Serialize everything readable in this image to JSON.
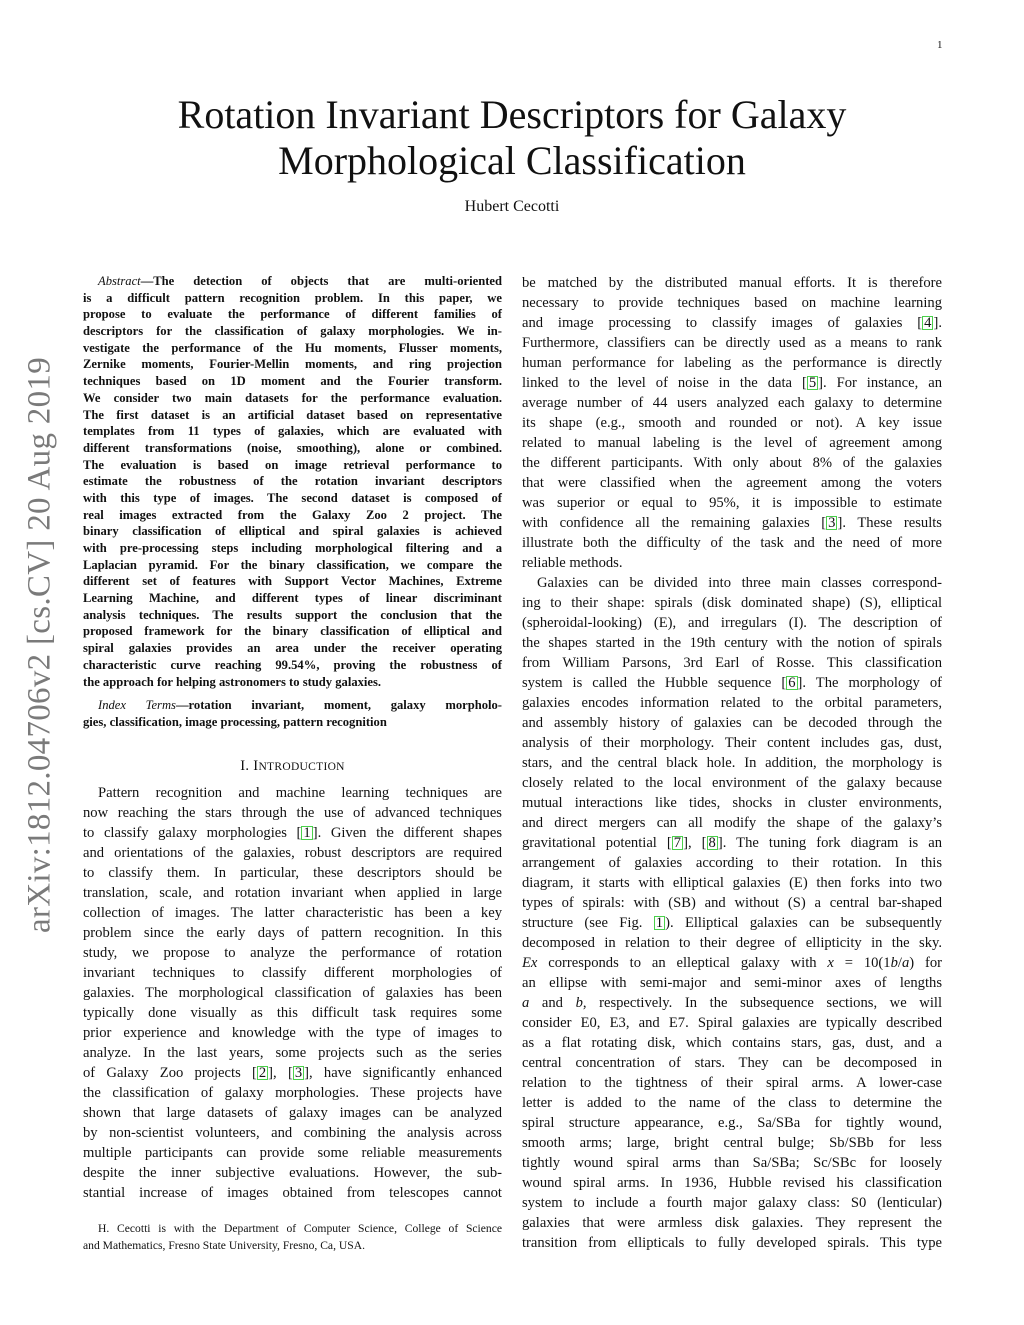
{
  "page_number": "1",
  "title_lines": [
    "Rotation Invariant Descriptors for Galaxy",
    "Morphological Classification"
  ],
  "author": "Hubert Cecotti",
  "arxiv_id": "arXiv:1812.04706v2  [cs.CV]  20 Aug 2019",
  "cite_color": "#4ad04a",
  "abstract": {
    "label": "Abstract",
    "lines": [
      "—The detection of objects that are multi-oriented",
      "is a difficult pattern recognition problem. In this paper, we",
      "propose to evaluate the performance of different families of",
      "descriptors for the classification of galaxy morphologies. We in-",
      "vestigate the performance of the Hu moments, Flusser moments,",
      "Zernike moments, Fourier-Mellin moments, and ring projection",
      "techniques based on 1D moment and the Fourier transform.",
      "We consider two main datasets for the performance evaluation.",
      "The first dataset is an artificial dataset based on representative",
      "templates from 11 types of galaxies, which are evaluated with",
      "different transformations (noise, smoothing), alone or combined.",
      "The evaluation is based on image retrieval performance to",
      "estimate the robustness of the rotation invariant descriptors",
      "with this type of images. The second dataset is composed of",
      "real images extracted from the Galaxy Zoo 2 project. The",
      "binary classification of elliptical and spiral galaxies is achieved",
      "with pre-processing steps including morphological filtering and a",
      "Laplacian pyramid. For the binary classification, we compare the",
      "different set of features with Support Vector Machines, Extreme",
      "Learning Machine, and different types of linear discriminant",
      "analysis techniques. The results support the conclusion that the",
      "proposed framework for the binary classification of elliptical and",
      "spiral galaxies provides an area under the receiver operating",
      "characteristic curve reaching 99.54%, proving the robustness of",
      "the approach for helping astronomers to study galaxies."
    ]
  },
  "index_terms": {
    "label": "Index Terms",
    "lines": [
      "—rotation invariant, moment, galaxy morpholo-",
      "gies, classification, image processing, pattern recognition"
    ]
  },
  "section": {
    "number": "I.",
    "first_letter": "I",
    "rest": "NTRODUCTION"
  },
  "left_paragraphs": [
    [
      "Pattern recognition and machine learning techniques are",
      "now reaching the stars through the use of advanced techniques",
      "to classify galaxy morphologies [1]. Given the different shapes",
      "and orientations of the galaxies, robust descriptors are required",
      "to classify them. In particular, these descriptors should be",
      "translation, scale, and rotation invariant when applied in large",
      "collection of images. The latter characteristic has been a key",
      "problem since the early days of pattern recognition. In this",
      "study, we propose to analyze the performance of rotation",
      "invariant techniques to classify different morphologies of",
      "galaxies. The morphological classification of galaxies has been",
      "typically done visually as this difficult task requires some",
      "prior experience and knowledge with the type of images to",
      "analyze. In the last years, some projects such as the series",
      "of Galaxy Zoo projects [2], [3], have significantly enhanced",
      "the classification of galaxy morphologies. These projects have",
      "shown that large datasets of galaxy images can be analyzed",
      "by non-scientist volunteers, and combining the analysis across",
      "multiple participants can provide some reliable measurements",
      "despite the inner subjective evaluations. However, the sub-",
      "stantial increase of images obtained from telescopes cannot"
    ]
  ],
  "footnote": [
    "H. Cecotti is with the Department of Computer Science, College of Science",
    "and Mathematics, Fresno State University, Fresno, Ca, USA."
  ],
  "right_paragraphs": [
    [
      "be matched by the distributed manual efforts. It is therefore",
      "necessary to provide techniques based on machine learning",
      "and image processing to classify images of galaxies [4].",
      "Furthermore, classifiers can be directly used as a means to rank",
      "human performance for labeling as the performance is directly",
      "linked to the level of noise in the data [5]. For instance, an",
      "average number of 44 users analyzed each galaxy to determine",
      "its shape (e.g., smooth and rounded or not). A key issue",
      "related to manual labeling is the level of agreement among",
      "the different participants. With only about 8% of the galaxies",
      "that were classified when the agreement among the voters",
      "was superior or equal to 95%, it is impossible to estimate",
      "with confidence all the remaining galaxies [3]. These results",
      "illustrate both the difficulty of the task and the need of more",
      "reliable methods."
    ],
    [
      "Galaxies can be divided into three main classes correspond-",
      "ing to their shape: spirals (disk dominated shape) (S), elliptical",
      "(spheroidal-looking) (E), and irregulars (I). The description of",
      "the shapes started in the 19th century with the notion of spirals",
      "from William Parsons, 3rd Earl of Rosse. This classification",
      "system is called the Hubble sequence [6]. The morphology of",
      "galaxies encodes information related to the orbital parameters,",
      "and assembly history of galaxies can be decoded through the",
      "analysis of their morphology. Their content includes gas, dust,",
      "stars, and the central black hole. In addition, the morphology is",
      "closely related to the local environment of the galaxy because",
      "mutual interactions like tides, shocks in cluster environments,",
      "and direct mergers can all modify the shape of the galaxy’s",
      "gravitational potential [7], [8]. The tuning fork diagram is an",
      "arrangement of galaxies according to their rotation. In this",
      "diagram, it starts with elliptical galaxies (E) then forks into two",
      "types of spirals: with (SB) and without (S) a central bar-shaped",
      "structure (see Fig. [1]). Elliptical galaxies can be subsequently",
      "decomposed in relation to their degree of ellipticity in the sky.",
      "*Ex* corresponds to an elleptical galaxy with *x* = 10(1*b*/*a*) for",
      "an ellipse with semi-major and semi-minor axes of lengths",
      "*a* and *b*, respectively. In the subsequence sections, we will",
      "consider E0, E3, and E7. Spiral galaxies are typically described",
      "as a flat rotating disk, which contains stars, gas, dust, and a",
      "central concentration of stars. They can be decomposed in",
      "relation to the tightness of their spiral arms. A lower-case",
      "letter is added to the name of the class to determine the",
      "spiral structure appearance, e.g., Sa/SBa for tightly wound,",
      "smooth arms; large, bright central bulge; Sb/SBb for less",
      "tightly wound spiral arms than Sa/SBa; Sc/SBc for loosely",
      "wound spiral arms. In 1936, Hubble revised his classification",
      "system to include a fourth major galaxy class: S0 (lenticular)",
      "galaxies that were armless disk galaxies. They represent the",
      "transition from ellipticals to fully developed spirals. This type"
    ]
  ]
}
